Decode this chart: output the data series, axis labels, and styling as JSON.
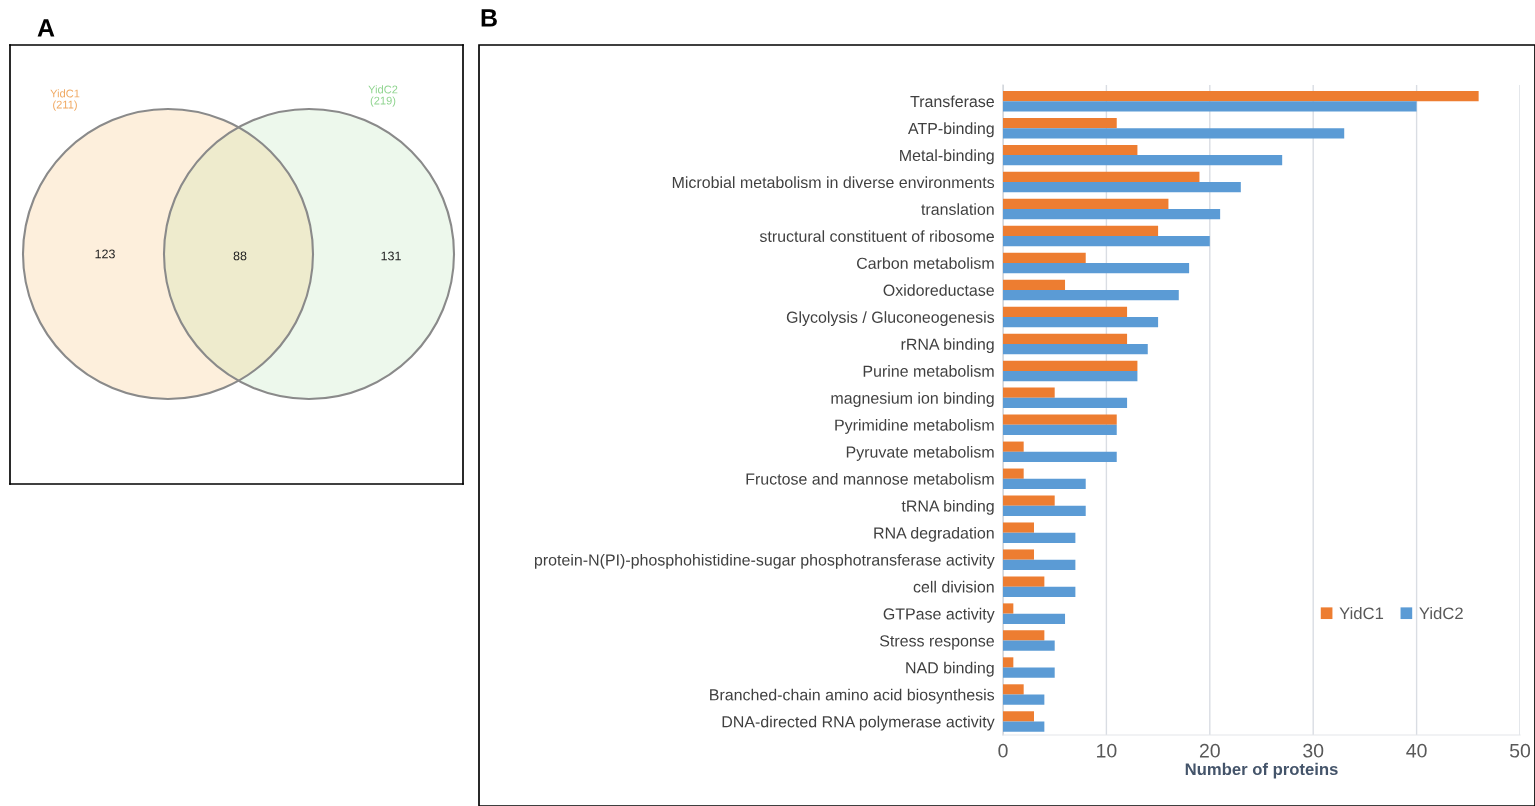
{
  "chart_data": [
    {
      "type": "other",
      "title": "A",
      "annotations": [
        "YidC1\n(211)",
        "YidC2\n(219)"
      ],
      "values": [
        123,
        88,
        131
      ],
      "colors": [
        "#fdefdc",
        "#eeebcd",
        "#edf8ec"
      ],
      "data_labels": true
    },
    {
      "type": "bar",
      "title": "B",
      "orientation": "horizontal",
      "xlabel": "Number of proteins",
      "categories": [
        "Transferase",
        "ATP-binding",
        "Metal-binding",
        "Microbial metabolism in diverse environments",
        "translation",
        "structural constituent of ribosome",
        "Carbon metabolism",
        "Oxidoreductase",
        "Glycolysis / Gluconeogenesis",
        "rRNA binding",
        "Purine metabolism",
        "magnesium ion binding",
        "Pyrimidine metabolism",
        "Pyruvate metabolism",
        "Fructose and mannose metabolism",
        "tRNA binding",
        "RNA degradation",
        "protein-N(PI)-phosphohistidine-sugar phosphotransferase activity",
        "cell division",
        "GTPase activity",
        "Stress response",
        "NAD binding",
        "Branched-chain amino acid biosynthesis",
        "DNA-directed RNA polymerase activity"
      ],
      "series": [
        {
          "name": "YidC1",
          "color": "#ed7d31",
          "values": [
            46,
            11,
            13,
            19,
            16,
            15,
            8,
            6,
            12,
            12,
            13,
            5,
            11,
            2,
            2,
            5,
            3,
            3,
            4,
            1,
            4,
            1,
            2,
            3
          ]
        },
        {
          "name": "YidC2",
          "color": "#5b9bd5",
          "values": [
            40,
            33,
            27,
            23,
            21,
            20,
            18,
            17,
            15,
            14,
            13,
            12,
            11,
            11,
            8,
            8,
            7,
            7,
            7,
            6,
            5,
            5,
            4,
            4
          ]
        }
      ],
      "xlim": [
        0,
        50
      ],
      "xticks": [
        0,
        10,
        20,
        30,
        40,
        50
      ],
      "grid": "x",
      "legend": "lower right"
    }
  ]
}
